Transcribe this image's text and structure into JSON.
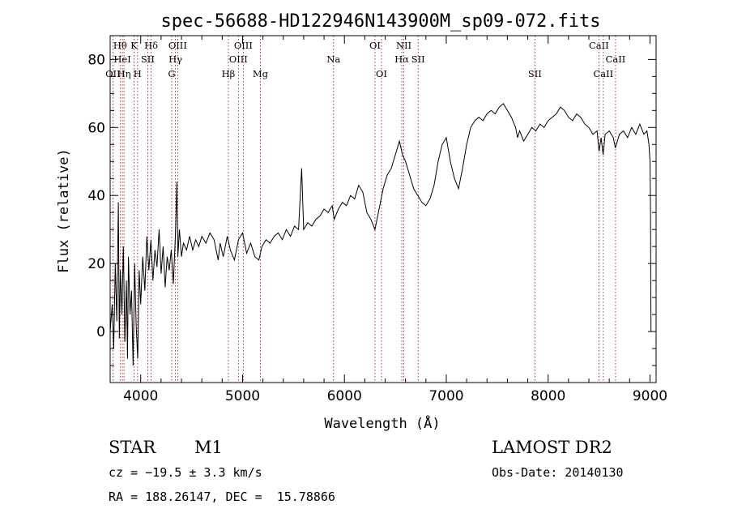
{
  "chart_data": {
    "type": "line",
    "title": "spec-56688-HD122946N143900M_sp09-072.fits",
    "xlabel": "Wavelength (Å)",
    "ylabel": "Flux (relative)",
    "xlim": [
      3700,
      9060
    ],
    "ylim": [
      -15,
      87
    ],
    "xticks": [
      4000,
      5000,
      6000,
      7000,
      8000,
      9000
    ],
    "yticks": [
      0,
      20,
      40,
      60,
      80
    ],
    "grid": false,
    "series": [
      {
        "points": [
          [
            3700,
            0
          ],
          [
            3720,
            8
          ],
          [
            3735,
            -5
          ],
          [
            3750,
            20
          ],
          [
            3765,
            3
          ],
          [
            3780,
            38
          ],
          [
            3790,
            -2
          ],
          [
            3800,
            18
          ],
          [
            3815,
            5
          ],
          [
            3830,
            25
          ],
          [
            3845,
            -3
          ],
          [
            3860,
            15
          ],
          [
            3870,
            -8
          ],
          [
            3880,
            22
          ],
          [
            3895,
            5
          ],
          [
            3910,
            12
          ],
          [
            3925,
            -10
          ],
          [
            3940,
            20
          ],
          [
            3955,
            2
          ],
          [
            3970,
            -8
          ],
          [
            3985,
            18
          ],
          [
            4000,
            8
          ],
          [
            4020,
            22
          ],
          [
            4040,
            12
          ],
          [
            4060,
            28
          ],
          [
            4080,
            18
          ],
          [
            4100,
            27
          ],
          [
            4120,
            15
          ],
          [
            4140,
            24
          ],
          [
            4160,
            19
          ],
          [
            4180,
            30
          ],
          [
            4200,
            17
          ],
          [
            4220,
            25
          ],
          [
            4240,
            13
          ],
          [
            4260,
            22
          ],
          [
            4280,
            18
          ],
          [
            4300,
            24
          ],
          [
            4320,
            14
          ],
          [
            4340,
            28
          ],
          [
            4355,
            44
          ],
          [
            4365,
            22
          ],
          [
            4380,
            30
          ],
          [
            4400,
            22
          ],
          [
            4420,
            26
          ],
          [
            4450,
            24
          ],
          [
            4480,
            28
          ],
          [
            4510,
            24
          ],
          [
            4540,
            27
          ],
          [
            4570,
            25
          ],
          [
            4600,
            28
          ],
          [
            4640,
            26
          ],
          [
            4680,
            29
          ],
          [
            4720,
            27
          ],
          [
            4760,
            21
          ],
          [
            4780,
            26
          ],
          [
            4810,
            22
          ],
          [
            4850,
            28
          ],
          [
            4880,
            24
          ],
          [
            4920,
            21
          ],
          [
            4960,
            27
          ],
          [
            5000,
            29
          ],
          [
            5040,
            23
          ],
          [
            5080,
            26
          ],
          [
            5120,
            22
          ],
          [
            5160,
            21
          ],
          [
            5190,
            25
          ],
          [
            5230,
            27
          ],
          [
            5270,
            26
          ],
          [
            5310,
            28
          ],
          [
            5350,
            29
          ],
          [
            5390,
            27
          ],
          [
            5430,
            30
          ],
          [
            5470,
            28
          ],
          [
            5510,
            31
          ],
          [
            5550,
            30
          ],
          [
            5580,
            48
          ],
          [
            5600,
            30
          ],
          [
            5640,
            32
          ],
          [
            5680,
            31
          ],
          [
            5720,
            33
          ],
          [
            5760,
            34
          ],
          [
            5800,
            36
          ],
          [
            5840,
            35
          ],
          [
            5880,
            37
          ],
          [
            5900,
            33
          ],
          [
            5940,
            36
          ],
          [
            5980,
            38
          ],
          [
            6020,
            37
          ],
          [
            6060,
            40
          ],
          [
            6100,
            39
          ],
          [
            6140,
            43
          ],
          [
            6180,
            41
          ],
          [
            6220,
            35
          ],
          [
            6260,
            33
          ],
          [
            6300,
            30
          ],
          [
            6340,
            36
          ],
          [
            6380,
            42
          ],
          [
            6420,
            46
          ],
          [
            6460,
            48
          ],
          [
            6500,
            52
          ],
          [
            6540,
            56
          ],
          [
            6570,
            52
          ],
          [
            6600,
            50
          ],
          [
            6640,
            46
          ],
          [
            6680,
            42
          ],
          [
            6720,
            40
          ],
          [
            6760,
            38
          ],
          [
            6800,
            37
          ],
          [
            6840,
            39
          ],
          [
            6880,
            43
          ],
          [
            6920,
            50
          ],
          [
            6960,
            55
          ],
          [
            7000,
            57
          ],
          [
            7040,
            50
          ],
          [
            7080,
            45
          ],
          [
            7120,
            42
          ],
          [
            7160,
            48
          ],
          [
            7200,
            55
          ],
          [
            7240,
            60
          ],
          [
            7280,
            62
          ],
          [
            7320,
            63
          ],
          [
            7360,
            62
          ],
          [
            7400,
            64
          ],
          [
            7440,
            65
          ],
          [
            7480,
            64
          ],
          [
            7520,
            66
          ],
          [
            7560,
            67
          ],
          [
            7600,
            65
          ],
          [
            7640,
            63
          ],
          [
            7680,
            60
          ],
          [
            7700,
            57
          ],
          [
            7720,
            59
          ],
          [
            7760,
            56
          ],
          [
            7800,
            58
          ],
          [
            7840,
            60
          ],
          [
            7880,
            59
          ],
          [
            7920,
            61
          ],
          [
            7960,
            60
          ],
          [
            8000,
            62
          ],
          [
            8040,
            63
          ],
          [
            8080,
            64
          ],
          [
            8120,
            66
          ],
          [
            8160,
            65
          ],
          [
            8200,
            63
          ],
          [
            8240,
            62
          ],
          [
            8280,
            64
          ],
          [
            8320,
            63
          ],
          [
            8360,
            61
          ],
          [
            8400,
            60
          ],
          [
            8440,
            58
          ],
          [
            8480,
            59
          ],
          [
            8500,
            53
          ],
          [
            8520,
            57
          ],
          [
            8540,
            52
          ],
          [
            8560,
            58
          ],
          [
            8600,
            59
          ],
          [
            8640,
            57
          ],
          [
            8660,
            54
          ],
          [
            8700,
            58
          ],
          [
            8740,
            59
          ],
          [
            8780,
            57
          ],
          [
            8820,
            60
          ],
          [
            8860,
            58
          ],
          [
            8900,
            61
          ],
          [
            8940,
            58
          ],
          [
            8970,
            59
          ],
          [
            8990,
            55
          ],
          [
            9000,
            50
          ],
          [
            9005,
            35
          ],
          [
            9008,
            10
          ],
          [
            9010,
            0
          ]
        ]
      }
    ],
    "lines": [
      {
        "label": "Hθ",
        "x": 3798,
        "row": 0
      },
      {
        "label": "OII",
        "x": 3727,
        "row": 2
      },
      {
        "label": "HeI",
        "x": 3820,
        "row": 1
      },
      {
        "label": "Hη",
        "x": 3836,
        "row": 2
      },
      {
        "label": "K",
        "x": 3934,
        "row": 0
      },
      {
        "label": "Hδ",
        "x": 4102,
        "row": 0
      },
      {
        "label": "SII",
        "x": 4069,
        "row": 1
      },
      {
        "label": "H",
        "x": 3969,
        "row": 2
      },
      {
        "label": "OIII",
        "x": 4363,
        "row": 0
      },
      {
        "label": "Hγ",
        "x": 4341,
        "row": 1
      },
      {
        "label": "G",
        "x": 4304,
        "row": 2
      },
      {
        "label": "OIII",
        "x": 5007,
        "row": 0
      },
      {
        "label": "OIII",
        "x": 4959,
        "row": 1
      },
      {
        "label": "Hβ",
        "x": 4861,
        "row": 2
      },
      {
        "label": "Mg",
        "x": 5175,
        "row": 2
      },
      {
        "label": "Na",
        "x": 5893,
        "row": 1
      },
      {
        "label": "OI",
        "x": 6300,
        "row": 0
      },
      {
        "label": "OI",
        "x": 6364,
        "row": 2
      },
      {
        "label": "NII",
        "x": 6583,
        "row": 0
      },
      {
        "label": "Hα",
        "x": 6563,
        "row": 1
      },
      {
        "label": "SII",
        "x": 6724,
        "row": 1
      },
      {
        "label": "SII",
        "x": 7870,
        "row": 2
      },
      {
        "label": "CaII",
        "x": 8498,
        "row": 0
      },
      {
        "label": "CaII",
        "x": 8662,
        "row": 1
      },
      {
        "label": "CaII",
        "x": 8542,
        "row": 2
      }
    ],
    "line_color": "#a00000"
  },
  "info": {
    "object_type": "STAR",
    "subclass": "M1",
    "survey": "LAMOST DR2",
    "cz": "cz = −19.5 ± 3.3 km/s",
    "obs_date": "Obs-Date: 20140130",
    "coords": "RA = 188.26147, DEC =  15.78866"
  }
}
